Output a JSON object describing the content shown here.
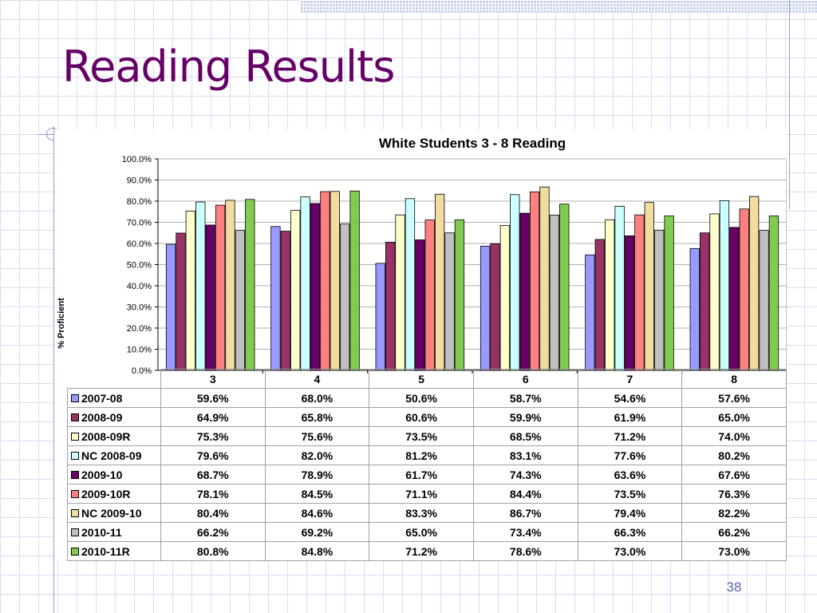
{
  "slide": {
    "title": "Reading Results",
    "number": "38"
  },
  "chart_data": {
    "type": "bar",
    "title": "White Students 3 - 8 Reading",
    "xlabel": "",
    "ylabel": "% Proficient",
    "ylim": [
      0,
      100
    ],
    "y_ticks": [
      "0.0%",
      "10.0%",
      "20.0%",
      "30.0%",
      "40.0%",
      "50.0%",
      "60.0%",
      "70.0%",
      "80.0%",
      "90.0%",
      "100.0%"
    ],
    "grid": true,
    "legend": "data table below chart",
    "categories": [
      "3",
      "4",
      "5",
      "6",
      "7",
      "8"
    ],
    "series": [
      {
        "name": "2007-08",
        "color": "#9999ff",
        "values": [
          59.6,
          68.0,
          50.6,
          58.7,
          54.6,
          57.6
        ],
        "labels": [
          "59.6%",
          "68.0%",
          "50.6%",
          "58.7%",
          "54.6%",
          "57.6%"
        ]
      },
      {
        "name": "2008-09",
        "color": "#993366",
        "values": [
          64.9,
          65.8,
          60.6,
          59.9,
          61.9,
          65.0
        ],
        "labels": [
          "64.9%",
          "65.8%",
          "60.6%",
          "59.9%",
          "61.9%",
          "65.0%"
        ]
      },
      {
        "name": "2008-09R",
        "color": "#ffffcc",
        "values": [
          75.3,
          75.6,
          73.5,
          68.5,
          71.2,
          74.0
        ],
        "labels": [
          "75.3%",
          "75.6%",
          "73.5%",
          "68.5%",
          "71.2%",
          "74.0%"
        ]
      },
      {
        "name": "NC 2008-09",
        "color": "#ccffff",
        "values": [
          79.6,
          82.0,
          81.2,
          83.1,
          77.6,
          80.2
        ],
        "labels": [
          "79.6%",
          "82.0%",
          "81.2%",
          "83.1%",
          "77.6%",
          "80.2%"
        ]
      },
      {
        "name": "2009-10",
        "color": "#660066",
        "values": [
          68.7,
          78.9,
          61.7,
          74.3,
          63.6,
          67.6
        ],
        "labels": [
          "68.7%",
          "78.9%",
          "61.7%",
          "74.3%",
          "63.6%",
          "67.6%"
        ]
      },
      {
        "name": "2009-10R",
        "color": "#ff8080",
        "values": [
          78.1,
          84.5,
          71.1,
          84.4,
          73.5,
          76.3
        ],
        "labels": [
          "78.1%",
          "84.5%",
          "71.1%",
          "84.4%",
          "73.5%",
          "76.3%"
        ]
      },
      {
        "name": "NC 2009-10",
        "color": "#f2dca0",
        "values": [
          80.4,
          84.6,
          83.3,
          86.7,
          79.4,
          82.2
        ],
        "labels": [
          "80.4%",
          "84.6%",
          "83.3%",
          "86.7%",
          "79.4%",
          "82.2%"
        ]
      },
      {
        "name": "2010-11",
        "color": "#c0c0c0",
        "values": [
          66.2,
          69.2,
          65.0,
          73.4,
          66.3,
          66.2
        ],
        "labels": [
          "66.2%",
          "69.2%",
          "65.0%",
          "73.4%",
          "66.3%",
          "66.2%"
        ]
      },
      {
        "name": "2010-11R",
        "color": "#80cc50",
        "values": [
          80.8,
          84.8,
          71.2,
          78.6,
          73.0,
          73.0
        ],
        "labels": [
          "80.8%",
          "84.8%",
          "71.2%",
          "78.6%",
          "73.0%",
          "73.0%"
        ]
      }
    ]
  }
}
